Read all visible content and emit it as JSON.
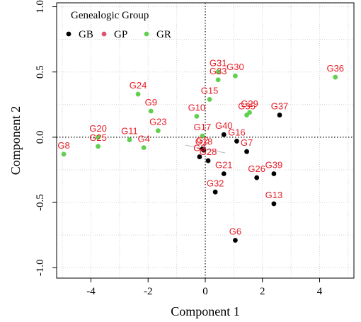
{
  "chart_data": {
    "type": "scatter",
    "xlabel": "Component 1",
    "ylabel": "Component 2",
    "xlim": [
      -5.2,
      5.2
    ],
    "ylim": [
      -1.08,
      1.03
    ],
    "xticks": [
      -4,
      -2,
      0,
      2,
      4
    ],
    "yticks": [
      -1.0,
      -0.5,
      0.0,
      0.5,
      1.0
    ],
    "ytick_labels": [
      "-1.0",
      "-0.5",
      "0.0",
      "0.5",
      "1.0"
    ],
    "grid": true,
    "legend": {
      "title": "Genealogic Group",
      "placement": "top-left",
      "entries": [
        {
          "name": "GB",
          "color": "#000000"
        },
        {
          "name": "GP",
          "color": "#df536b"
        },
        {
          "name": "GR",
          "color": "#61d04f"
        }
      ]
    },
    "label_color": "#e8202a",
    "points": [
      {
        "label": "G8",
        "group": "GR",
        "x": -4.95,
        "y": -0.13
      },
      {
        "label": "G20",
        "group": "GR",
        "x": -3.75,
        "y": 0.0
      },
      {
        "label": "G25",
        "group": "GR",
        "x": -3.75,
        "y": -0.07
      },
      {
        "label": "G11",
        "group": "GR",
        "x": -2.65,
        "y": -0.02
      },
      {
        "label": "G4",
        "group": "GR",
        "x": -2.15,
        "y": -0.08
      },
      {
        "label": "G24",
        "group": "GR",
        "x": -2.35,
        "y": 0.33
      },
      {
        "label": "G9",
        "group": "GR",
        "x": -1.9,
        "y": 0.2
      },
      {
        "label": "G23",
        "group": "GR",
        "x": -1.65,
        "y": 0.05
      },
      {
        "label": "G10",
        "group": "GR",
        "x": -0.3,
        "y": 0.16
      },
      {
        "label": "G17",
        "group": "GR",
        "x": -0.1,
        "y": 0.01
      },
      {
        "label": "G15",
        "group": "GR",
        "x": 0.15,
        "y": 0.29
      },
      {
        "label": "G31",
        "group": "GR",
        "x": 0.45,
        "y": 0.5
      },
      {
        "label": "G33",
        "group": "GR",
        "x": 0.45,
        "y": 0.44
      },
      {
        "label": "G30",
        "group": "GR",
        "x": 1.05,
        "y": 0.47
      },
      {
        "label": "G29",
        "group": "GR",
        "x": 1.55,
        "y": 0.19
      },
      {
        "label": "G35",
        "group": "GR",
        "x": 1.45,
        "y": 0.17
      },
      {
        "label": "G36",
        "group": "GR",
        "x": 4.55,
        "y": 0.46
      },
      {
        "label": "G2",
        "group": "GB",
        "x": -0.1,
        "y": -0.09
      },
      {
        "label": "G18",
        "group": "GB",
        "x": -0.05,
        "y": -0.1
      },
      {
        "label": "G3",
        "group": "GB",
        "x": -0.2,
        "y": -0.15
      },
      {
        "label": "G28",
        "group": "GB",
        "x": 0.1,
        "y": -0.18
      },
      {
        "label": "G40",
        "group": "GB",
        "x": 0.65,
        "y": 0.02
      },
      {
        "label": "G16",
        "group": "GB",
        "x": 1.1,
        "y": -0.03
      },
      {
        "label": "G7",
        "group": "GB",
        "x": 1.45,
        "y": -0.11
      },
      {
        "label": "G21",
        "group": "GB",
        "x": 0.65,
        "y": -0.28
      },
      {
        "label": "G32",
        "group": "GB",
        "x": 0.35,
        "y": -0.42
      },
      {
        "label": "G37",
        "group": "GB",
        "x": 2.6,
        "y": 0.17
      },
      {
        "label": "G26",
        "group": "GB",
        "x": 1.8,
        "y": -0.31
      },
      {
        "label": "G39",
        "group": "GB",
        "x": 2.4,
        "y": -0.28
      },
      {
        "label": "G13",
        "group": "GB",
        "x": 2.4,
        "y": -0.51
      },
      {
        "label": "G6",
        "group": "GB",
        "x": 1.05,
        "y": -0.79
      }
    ]
  }
}
